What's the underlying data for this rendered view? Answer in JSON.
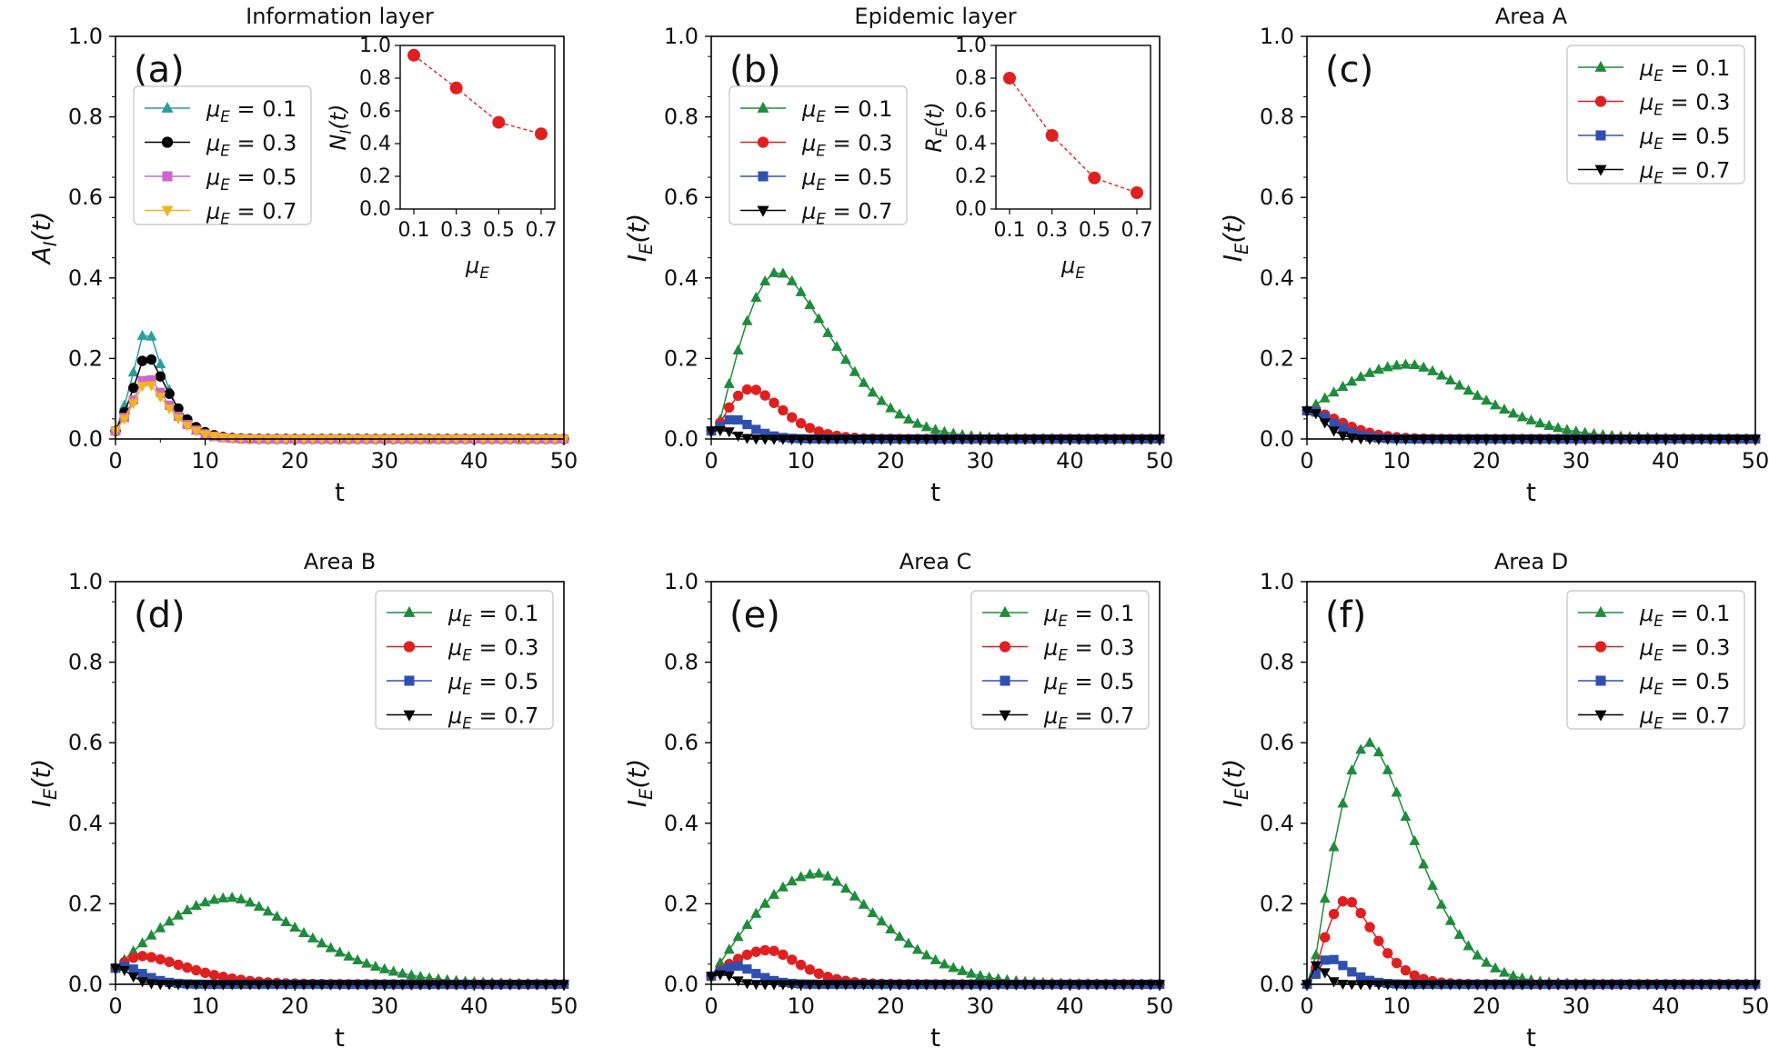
{
  "chart_data": [
    {
      "id": "a",
      "type": "line",
      "panel_label": "(a)",
      "title": "Information layer",
      "xlabel": "t",
      "ylabel": "A_I(t)",
      "xlim": [
        0,
        50
      ],
      "ylim": [
        0,
        1.0
      ],
      "xticks": [
        0,
        10,
        20,
        30,
        40,
        50
      ],
      "yticks": [
        0.0,
        0.2,
        0.4,
        0.6,
        0.8,
        1.0
      ],
      "legend_position": "upper-left",
      "series": [
        {
          "name": "μE = 0.1",
          "color": "#2a9d9d",
          "marker": "triangle-up",
          "kind": "info",
          "peak": 0.285,
          "peak_t": 3.3,
          "rise": 2.0,
          "decay": 3.0
        },
        {
          "name": "μE = 0.3",
          "color": "#000000",
          "marker": "circle",
          "kind": "info",
          "peak": 0.215,
          "peak_t": 3.3,
          "rise": 2.0,
          "decay": 3.6
        },
        {
          "name": "μE = 0.5",
          "color": "#cc66cc",
          "marker": "square",
          "kind": "info",
          "peak": 0.16,
          "peak_t": 3.3,
          "rise": 2.0,
          "decay": 3.6
        },
        {
          "name": "μE = 0.7",
          "color": "#f0b41e",
          "marker": "triangle-down",
          "kind": "info",
          "peak": 0.145,
          "peak_t": 3.3,
          "rise": 2.0,
          "decay": 3.6
        }
      ],
      "inset": {
        "ylabel": "N_I(t)",
        "xlabel": "μE",
        "x": [
          0.1,
          0.3,
          0.5,
          0.7
        ],
        "values": [
          0.94,
          0.74,
          0.53,
          0.46
        ],
        "xticks": [
          "0.1",
          "0.3",
          "0.5",
          "0.7"
        ],
        "yticks": [
          "0.0",
          "0.2",
          "0.4",
          "0.6",
          "0.8",
          "1.0"
        ],
        "ylim": [
          0,
          1.0
        ],
        "color": "#e02020"
      }
    },
    {
      "id": "b",
      "type": "line",
      "panel_label": "(b)",
      "title": "Epidemic layer",
      "xlabel": "t",
      "ylabel": "I_E(t)",
      "xlim": [
        0,
        50
      ],
      "ylim": [
        0,
        1.0
      ],
      "xticks": [
        0,
        10,
        20,
        30,
        40,
        50
      ],
      "yticks": [
        0.0,
        0.2,
        0.4,
        0.6,
        0.8,
        1.0
      ],
      "legend_position": "upper-left",
      "series": [
        {
          "name": "μE = 0.1",
          "color": "#1e8c3c",
          "marker": "triangle-up",
          "kind": "epi",
          "y0": 0.02,
          "peak": 0.415,
          "peak_t": 7.5,
          "t0": 0.7,
          "decay": 9.0
        },
        {
          "name": "μE = 0.3",
          "color": "#e02020",
          "marker": "circle",
          "kind": "epi",
          "y0": 0.02,
          "peak": 0.125,
          "peak_t": 4.5,
          "t0": 0.5,
          "decay": 5.0
        },
        {
          "name": "μE = 0.5",
          "color": "#3050b0",
          "marker": "square",
          "kind": "epi",
          "y0": 0.02,
          "peak": 0.05,
          "peak_t": 2.5,
          "t0": 0.5,
          "decay": 3.0
        },
        {
          "name": "μE = 0.7",
          "color": "#000000",
          "marker": "triangle-down",
          "kind": "epi",
          "y0": 0.02,
          "peak": 0.022,
          "peak_t": 1.5,
          "t0": 0.5,
          "decay": 1.5
        }
      ],
      "inset": {
        "ylabel": "R_E(t)",
        "xlabel": "μE",
        "x": [
          0.1,
          0.3,
          0.5,
          0.7
        ],
        "values": [
          0.8,
          0.45,
          0.19,
          0.1
        ],
        "xticks": [
          "0.1",
          "0.3",
          "0.5",
          "0.7"
        ],
        "yticks": [
          "0.0",
          "0.2",
          "0.4",
          "0.6",
          "0.8",
          "1.0"
        ],
        "ylim": [
          0,
          1.0
        ],
        "color": "#e02020"
      }
    },
    {
      "id": "c",
      "type": "line",
      "panel_label": "(c)",
      "title": "Area A",
      "xlabel": "t",
      "ylabel": "I_E(t)",
      "xlim": [
        0,
        50
      ],
      "ylim": [
        0,
        1.0
      ],
      "xticks": [
        0,
        10,
        20,
        30,
        40,
        50
      ],
      "yticks": [
        0.0,
        0.2,
        0.4,
        0.6,
        0.8,
        1.0
      ],
      "legend_position": "upper-right",
      "series": [
        {
          "name": "μE = 0.1",
          "color": "#1e8c3c",
          "marker": "triangle-up",
          "kind": "epi",
          "y0": 0.07,
          "peak": 0.185,
          "peak_t": 11.5,
          "t0": 0,
          "decay": 11.0
        },
        {
          "name": "μE = 0.3",
          "color": "#e02020",
          "marker": "circle",
          "kind": "epi",
          "y0": 0.07,
          "peak": 0.07,
          "peak_t": 0.5,
          "t0": 0,
          "decay": 5.0
        },
        {
          "name": "μE = 0.5",
          "color": "#3050b0",
          "marker": "square",
          "kind": "epi",
          "y0": 0.07,
          "peak": 0.07,
          "peak_t": 0.5,
          "t0": 0,
          "decay": 3.5
        },
        {
          "name": "μE = 0.7",
          "color": "#000000",
          "marker": "triangle-down",
          "kind": "epi",
          "y0": 0.07,
          "peak": 0.07,
          "peak_t": 0.5,
          "t0": 0,
          "decay": 2.2
        }
      ]
    },
    {
      "id": "d",
      "type": "line",
      "panel_label": "(d)",
      "title": "Area B",
      "xlabel": "t",
      "ylabel": "I_E(t)",
      "xlim": [
        0,
        50
      ],
      "ylim": [
        0,
        1.0
      ],
      "xticks": [
        0,
        10,
        20,
        30,
        40,
        50
      ],
      "yticks": [
        0.0,
        0.2,
        0.4,
        0.6,
        0.8,
        1.0
      ],
      "legend_position": "upper-right",
      "series": [
        {
          "name": "μE = 0.1",
          "color": "#1e8c3c",
          "marker": "triangle-up",
          "kind": "epi",
          "y0": 0.04,
          "peak": 0.215,
          "peak_t": 13.0,
          "t0": 0,
          "decay": 12.0
        },
        {
          "name": "μE = 0.3",
          "color": "#e02020",
          "marker": "circle",
          "kind": "epi",
          "y0": 0.04,
          "peak": 0.07,
          "peak_t": 3.0,
          "t0": 0,
          "decay": 7.5
        },
        {
          "name": "μE = 0.5",
          "color": "#3050b0",
          "marker": "square",
          "kind": "epi",
          "y0": 0.04,
          "peak": 0.045,
          "peak_t": 1.0,
          "t0": 0,
          "decay": 3.0
        },
        {
          "name": "μE = 0.7",
          "color": "#000000",
          "marker": "triangle-down",
          "kind": "epi",
          "y0": 0.04,
          "peak": 0.04,
          "peak_t": 0.5,
          "t0": 0,
          "decay": 1.8
        }
      ]
    },
    {
      "id": "e",
      "type": "line",
      "panel_label": "(e)",
      "title": "Area C",
      "xlabel": "t",
      "ylabel": "I_E(t)",
      "xlim": [
        0,
        50
      ],
      "ylim": [
        0,
        1.0
      ],
      "xticks": [
        0,
        10,
        20,
        30,
        40,
        50
      ],
      "yticks": [
        0.0,
        0.2,
        0.4,
        0.6,
        0.8,
        1.0
      ],
      "legend_position": "upper-right",
      "series": [
        {
          "name": "μE = 0.1",
          "color": "#1e8c3c",
          "marker": "triangle-up",
          "kind": "epi",
          "y0": 0.02,
          "peak": 0.275,
          "peak_t": 12.0,
          "t0": 0,
          "decay": 10.0
        },
        {
          "name": "μE = 0.3",
          "color": "#e02020",
          "marker": "circle",
          "kind": "epi",
          "y0": 0.02,
          "peak": 0.085,
          "peak_t": 6.5,
          "t0": 0,
          "decay": 5.0
        },
        {
          "name": "μE = 0.5",
          "color": "#3050b0",
          "marker": "square",
          "kind": "epi",
          "y0": 0.02,
          "peak": 0.045,
          "peak_t": 3.0,
          "t0": 0,
          "decay": 3.0
        },
        {
          "name": "μE = 0.7",
          "color": "#000000",
          "marker": "triangle-down",
          "kind": "epi",
          "y0": 0.02,
          "peak": 0.025,
          "peak_t": 1.5,
          "t0": 0,
          "decay": 1.5
        }
      ]
    },
    {
      "id": "f",
      "type": "line",
      "panel_label": "(f)",
      "title": "Area D",
      "xlabel": "t",
      "ylabel": "I_E(t)",
      "xlim": [
        0,
        50
      ],
      "ylim": [
        0,
        1.0
      ],
      "xticks": [
        0,
        10,
        20,
        30,
        40,
        50
      ],
      "yticks": [
        0.0,
        0.2,
        0.4,
        0.6,
        0.8,
        1.0
      ],
      "legend_position": "upper-right",
      "series": [
        {
          "name": "μE = 0.1",
          "color": "#1e8c3c",
          "marker": "triangle-up",
          "kind": "epi",
          "y0": 0.0,
          "peak": 0.6,
          "peak_t": 7.0,
          "t0": 0.5,
          "decay": 7.5
        },
        {
          "name": "μE = 0.3",
          "color": "#e02020",
          "marker": "circle",
          "kind": "epi",
          "y0": 0.0,
          "peak": 0.21,
          "peak_t": 4.5,
          "t0": 0.5,
          "decay": 4.5
        },
        {
          "name": "μE = 0.5",
          "color": "#3050b0",
          "marker": "square",
          "kind": "epi",
          "y0": 0.0,
          "peak": 0.065,
          "peak_t": 2.5,
          "t0": 0.5,
          "decay": 3.0
        },
        {
          "name": "μE = 0.7",
          "color": "#000000",
          "marker": "triangle-down",
          "kind": "epi",
          "y0": 0.0,
          "peak": 0.05,
          "peak_t": 1.2,
          "t0": 0.3,
          "decay": 1.2
        }
      ]
    }
  ]
}
